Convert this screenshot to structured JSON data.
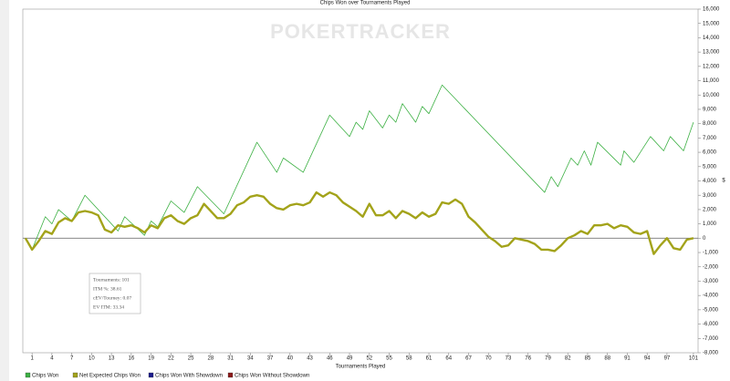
{
  "chart_data": {
    "type": "line",
    "title": "Chips Won over Tournaments Played",
    "watermark": "POKERTRACKER",
    "x_label": "Tournaments Played",
    "y_label": "$",
    "xlim": [
      -0.4,
      101.7
    ],
    "xticks": [
      1,
      4,
      7,
      10,
      13,
      16,
      19,
      22,
      25,
      28,
      31,
      34,
      37,
      40,
      43,
      46,
      49,
      52,
      55,
      58,
      61,
      64,
      67,
      70,
      73,
      76,
      79,
      82,
      85,
      88,
      91,
      94,
      97,
      101
    ],
    "ylim": [
      -8000,
      16000
    ],
    "yticks": [
      {
        "value": -8000,
        "label": "-8,000"
      },
      {
        "value": -7000,
        "label": "-7,000"
      },
      {
        "value": -6000,
        "label": "-6,000"
      },
      {
        "value": -5000,
        "label": "-5,000"
      },
      {
        "value": -4000,
        "label": "-4,000"
      },
      {
        "value": -3000,
        "label": "-3,000"
      },
      {
        "value": -2000,
        "label": "-2,000"
      },
      {
        "value": -1000,
        "label": "-1,000"
      },
      0,
      {
        "value": 1000,
        "label": "1,000"
      },
      {
        "value": 2000,
        "label": "2,000"
      },
      {
        "value": 3000,
        "label": "3,000"
      },
      {
        "value": 4000,
        "label": "4,000"
      },
      {
        "value": 5000,
        "label": "5,000"
      },
      {
        "value": 6000,
        "label": "6,000"
      },
      {
        "value": 7000,
        "label": "7,000"
      },
      {
        "value": 8000,
        "label": "8,000"
      },
      {
        "value": 9000,
        "label": "9,000"
      },
      {
        "value": 10000,
        "label": "10,000"
      },
      {
        "value": 11000,
        "label": "11,000"
      },
      {
        "value": 12000,
        "label": "12,000"
      },
      {
        "value": 13000,
        "label": "13,000"
      },
      {
        "value": 14000,
        "label": "14,000"
      },
      {
        "value": 15000,
        "label": "15,000"
      },
      {
        "value": 16000,
        "label": "16,000"
      }
    ],
    "zero_line": true,
    "series": [
      {
        "name": "Chips Won",
        "color": "#3cb043",
        "width": 0.8,
        "x": [
          0,
          1,
          3,
          4,
          5,
          7,
          9,
          14,
          15,
          18,
          19,
          20,
          22,
          24,
          26,
          30,
          35,
          38,
          39,
          42,
          46,
          49,
          50,
          51,
          52,
          54,
          55,
          56,
          57,
          59,
          60,
          61,
          63,
          78.5,
          79.5,
          80.5,
          82.5,
          83.5,
          84.5,
          85.5,
          86.5,
          90,
          90.5,
          92,
          94.5,
          96.5,
          97.5,
          99.5,
          101
        ],
        "values": [
          0,
          -800,
          1500,
          1000,
          2000,
          1200,
          3000,
          500,
          1500,
          200,
          1200,
          800,
          2600,
          1800,
          3600,
          1700,
          6700,
          4600,
          5600,
          4600,
          8600,
          7100,
          8100,
          7600,
          8900,
          7700,
          8600,
          8100,
          9400,
          8100,
          9200,
          8700,
          10700,
          3200,
          4300,
          3600,
          5600,
          5100,
          6100,
          5100,
          6700,
          5100,
          6100,
          5300,
          7100,
          6100,
          7100,
          6100,
          8100
        ]
      },
      {
        "name": "Net Expected Chips Won",
        "color": "#a3a31a",
        "width": 2.4,
        "x": [
          0,
          1,
          2,
          3,
          4,
          5,
          6,
          7,
          8,
          9,
          10,
          11,
          12,
          13,
          14,
          15,
          16,
          17,
          18,
          19,
          20,
          21,
          22,
          23,
          24,
          25,
          26,
          27,
          28,
          29,
          30,
          31,
          32,
          33,
          34,
          35,
          36,
          37,
          38,
          39,
          40,
          41,
          42,
          43,
          44,
          45,
          46,
          47,
          48,
          49,
          50,
          51,
          52,
          53,
          54,
          55,
          56,
          57,
          58,
          59,
          60,
          61,
          62,
          63,
          64,
          65,
          66,
          67,
          68,
          69,
          70,
          71,
          72,
          73,
          74,
          75,
          76,
          77,
          78,
          79,
          80,
          81,
          82,
          83,
          84,
          85,
          86,
          87,
          88,
          89,
          90,
          91,
          92,
          93,
          94,
          95,
          96,
          97,
          98,
          99,
          100,
          101
        ],
        "values": [
          0,
          -800,
          -200,
          500,
          300,
          1100,
          1400,
          1200,
          1800,
          1900,
          1800,
          1600,
          600,
          400,
          900,
          800,
          900,
          700,
          400,
          900,
          700,
          1400,
          1600,
          1200,
          1000,
          1400,
          1600,
          2400,
          1900,
          1400,
          1400,
          1700,
          2300,
          2500,
          2900,
          3000,
          2900,
          2400,
          2100,
          2000,
          2300,
          2400,
          2300,
          2500,
          3200,
          2900,
          3200,
          3000,
          2500,
          2200,
          1900,
          1500,
          2400,
          1600,
          1600,
          1900,
          1400,
          1900,
          1700,
          1400,
          1800,
          1500,
          1700,
          2500,
          2400,
          2700,
          2400,
          1500,
          1100,
          600,
          100,
          -200,
          -600,
          -500,
          0,
          -100,
          -200,
          -400,
          -800,
          -800,
          -900,
          -500,
          0,
          200,
          500,
          300,
          900,
          900,
          1000,
          700,
          900,
          800,
          400,
          300,
          500,
          -1100,
          -500,
          0,
          -700,
          -800,
          -100,
          0
        ]
      },
      {
        "name": "Chips Won With Showdown",
        "color": "#1a1a8c",
        "x": [],
        "values": []
      },
      {
        "name": "Chips Won Without Showdown",
        "color": "#8c1a1a",
        "x": [],
        "values": []
      }
    ],
    "stats": [
      "Tournaments: 101",
      "ITM %: 38.61",
      "cEV/Tourney: 0.07",
      "EV ITM: 33.34"
    ]
  }
}
